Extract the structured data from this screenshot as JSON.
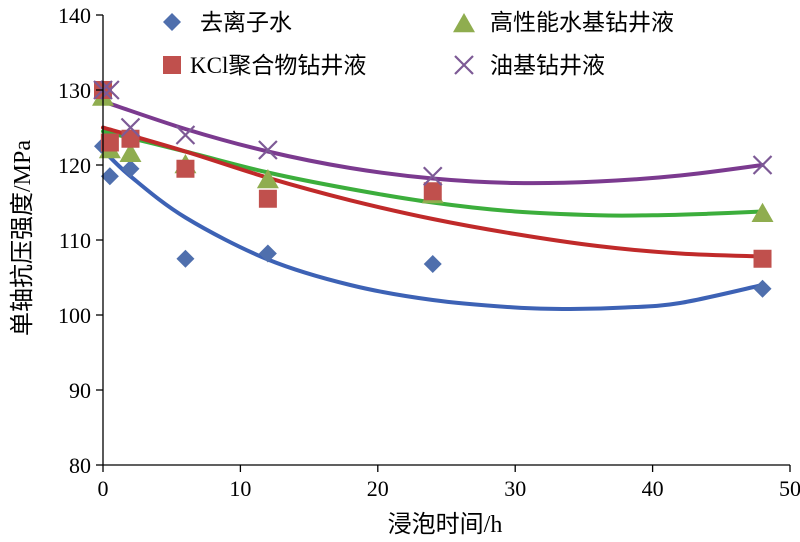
{
  "chart_data": {
    "type": "scatter",
    "xlabel": "浸泡时间/h",
    "ylabel": "单轴抗压强度/MPa",
    "xlim": [
      0,
      50
    ],
    "ylim": [
      80,
      140
    ],
    "xticks": [
      0,
      10,
      20,
      30,
      40,
      50
    ],
    "yticks": [
      80,
      90,
      100,
      110,
      120,
      130,
      140
    ],
    "grid": false,
    "legend_position": "top",
    "series": [
      {
        "name": "去离子水",
        "marker": "diamond",
        "color": "#4f6fad",
        "trend_color": "#3d62b5",
        "points": [
          [
            0,
            122.5
          ],
          [
            0.5,
            118.5
          ],
          [
            2,
            119.5
          ],
          [
            6,
            107.5
          ],
          [
            12,
            108.2
          ],
          [
            24,
            106.8
          ],
          [
            48,
            103.5
          ]
        ],
        "trend": [
          [
            0,
            122
          ],
          [
            2,
            118.5
          ],
          [
            6,
            113
          ],
          [
            12,
            107.4
          ],
          [
            18,
            104
          ],
          [
            24,
            102
          ],
          [
            30,
            101
          ],
          [
            34,
            100.8
          ],
          [
            38,
            101
          ],
          [
            42,
            101.6
          ],
          [
            48,
            104
          ]
        ]
      },
      {
        "name": "高性能水基钻井液",
        "marker": "triangle",
        "color": "#8fad4f",
        "trend_color": "#3cae3c",
        "points": [
          [
            0,
            129
          ],
          [
            0.5,
            122
          ],
          [
            2,
            121.5
          ],
          [
            6,
            120
          ],
          [
            12,
            118
          ],
          [
            24,
            116
          ],
          [
            48,
            113.5
          ]
        ],
        "trend": [
          [
            0,
            124.5
          ],
          [
            6,
            121.8
          ],
          [
            12,
            119
          ],
          [
            18,
            116.8
          ],
          [
            24,
            115
          ],
          [
            30,
            113.8
          ],
          [
            36,
            113.3
          ],
          [
            40,
            113.3
          ],
          [
            44,
            113.5
          ],
          [
            48,
            113.8
          ]
        ]
      },
      {
        "name": "KCl聚合物钻井液",
        "marker": "square",
        "color": "#c0504d",
        "trend_color": "#c02a2a",
        "points": [
          [
            0,
            130
          ],
          [
            0.5,
            123
          ],
          [
            2,
            123.5
          ],
          [
            6,
            119.5
          ],
          [
            12,
            115.5
          ],
          [
            24,
            116.5
          ],
          [
            48,
            107.5
          ]
        ],
        "trend": [
          [
            0,
            125
          ],
          [
            6,
            121.8
          ],
          [
            12,
            118.3
          ],
          [
            18,
            115.3
          ],
          [
            24,
            112.8
          ],
          [
            30,
            110.8
          ],
          [
            36,
            109.2
          ],
          [
            42,
            108.2
          ],
          [
            48,
            107.8
          ]
        ]
      },
      {
        "name": "油基钻井液",
        "marker": "x",
        "color": "#7d5a96",
        "trend_color": "#7b3a8f",
        "points": [
          [
            0,
            130
          ],
          [
            0.5,
            130
          ],
          [
            2,
            125
          ],
          [
            6,
            124
          ],
          [
            12,
            122
          ],
          [
            24,
            118.5
          ],
          [
            48,
            120
          ]
        ],
        "trend": [
          [
            0,
            128.5
          ],
          [
            6,
            124.8
          ],
          [
            12,
            121.8
          ],
          [
            18,
            119.6
          ],
          [
            24,
            118.2
          ],
          [
            30,
            117.6
          ],
          [
            36,
            117.8
          ],
          [
            42,
            118.6
          ],
          [
            48,
            120
          ]
        ]
      }
    ]
  }
}
